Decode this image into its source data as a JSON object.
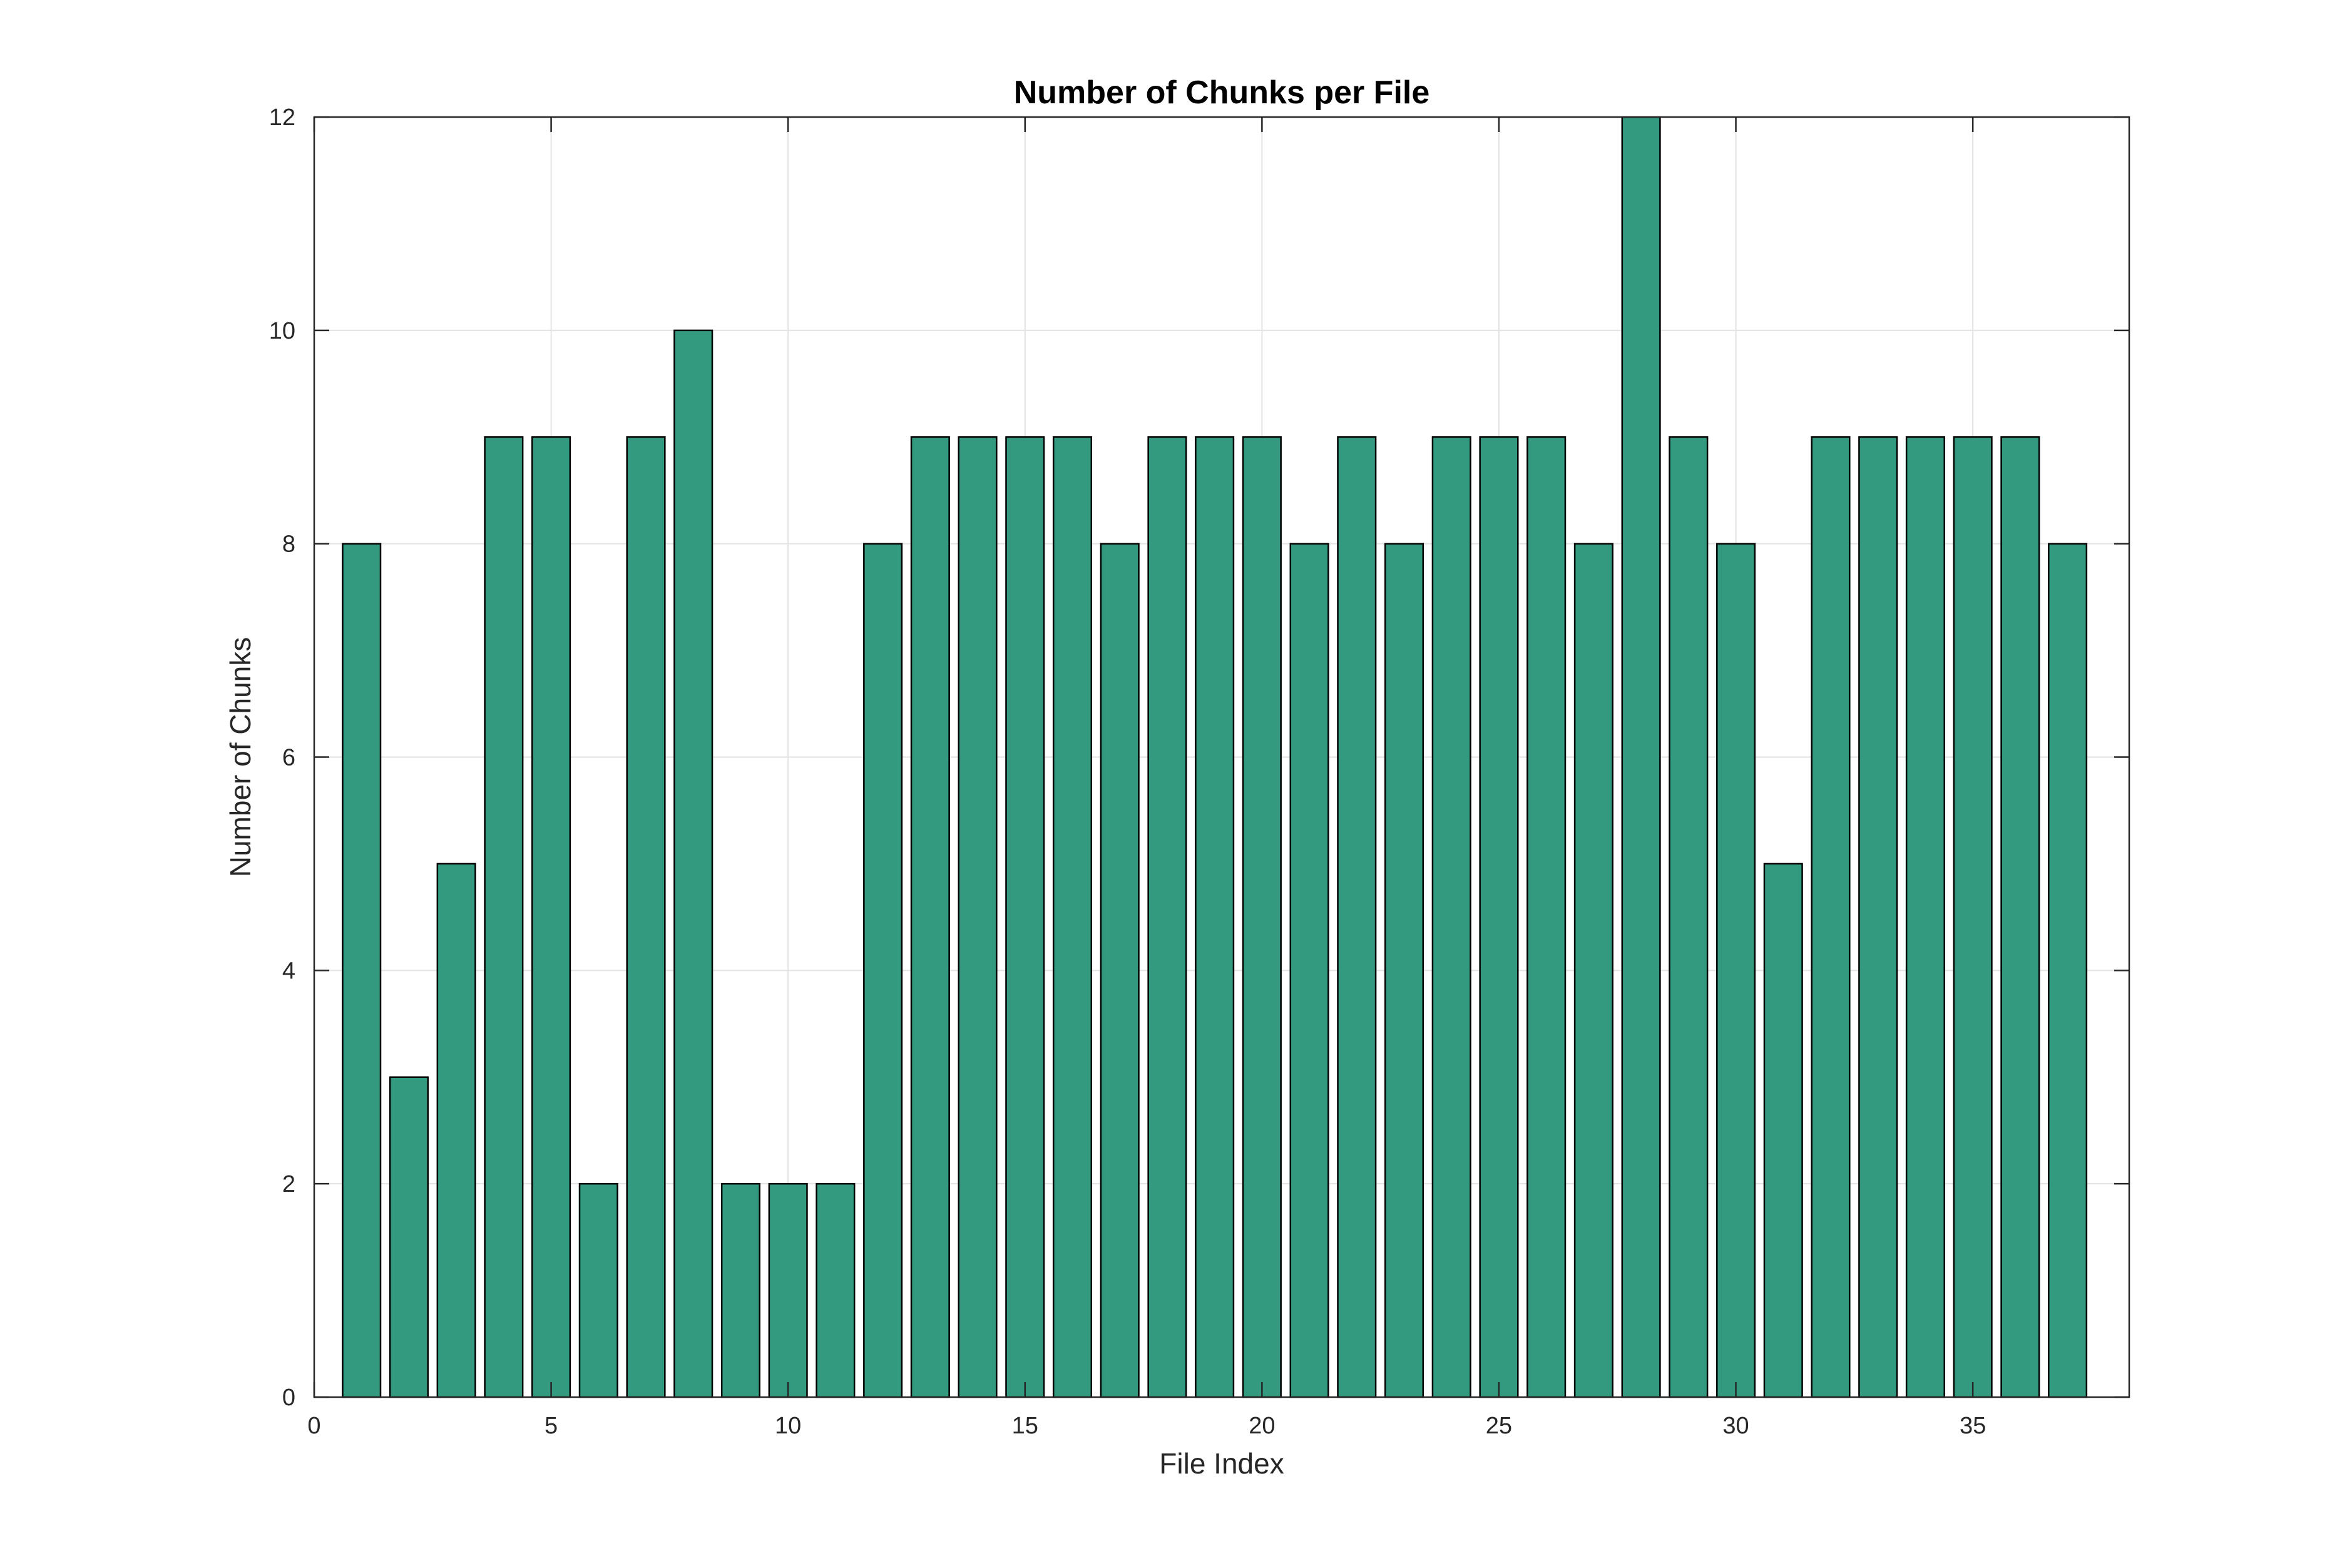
{
  "chart_data": {
    "type": "bar",
    "title": "Number of Chunks per File",
    "xlabel": "File Index",
    "ylabel": "Number of Chunks",
    "x": [
      1,
      2,
      3,
      4,
      5,
      6,
      7,
      8,
      9,
      10,
      11,
      12,
      13,
      14,
      15,
      16,
      17,
      18,
      19,
      20,
      21,
      22,
      23,
      24,
      25,
      26,
      27,
      28,
      29,
      30,
      31,
      32,
      33,
      34,
      35,
      36,
      37
    ],
    "values": [
      8,
      3,
      5,
      9,
      9,
      2,
      9,
      10,
      2,
      2,
      2,
      8,
      9,
      9,
      9,
      9,
      8,
      9,
      9,
      9,
      8,
      9,
      8,
      9,
      9,
      9,
      8,
      12,
      9,
      8,
      5,
      9,
      9,
      9,
      9,
      9,
      8
    ],
    "xlim": [
      0,
      38.3
    ],
    "ylim": [
      0,
      12
    ],
    "xticks": [
      0,
      5,
      10,
      15,
      20,
      25,
      30,
      35
    ],
    "yticks": [
      0,
      2,
      4,
      6,
      8,
      10,
      12
    ],
    "grid": true,
    "legend": "none",
    "bar_color": "#339a80",
    "bar_edge_color": "#000000"
  }
}
